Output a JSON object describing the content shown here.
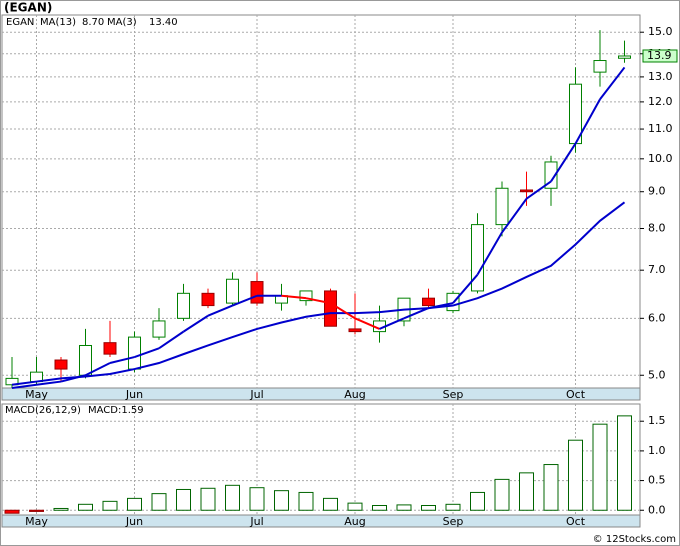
{
  "chart_data": [
    {
      "type": "candlestick",
      "title": "(EGAN)",
      "symbol": "EGAN",
      "categories": [
        null,
        "May",
        null,
        null,
        null,
        "Jun",
        null,
        null,
        null,
        null,
        "Jul",
        null,
        null,
        null,
        "Aug",
        null,
        null,
        null,
        "Sep",
        null,
        null,
        null,
        null,
        "Oct",
        null,
        null
      ],
      "open": [
        4.85,
        4.9,
        5.25,
        5.0,
        5.55,
        5.1,
        5.65,
        6.0,
        6.5,
        6.3,
        6.75,
        6.3,
        6.35,
        6.55,
        5.8,
        5.75,
        5.95,
        6.4,
        6.15,
        6.55,
        8.1,
        9.05,
        9.1,
        10.5,
        13.2,
        13.8
      ],
      "high": [
        5.3,
        5.3,
        5.3,
        5.8,
        5.95,
        5.75,
        6.2,
        6.7,
        6.6,
        6.95,
        6.95,
        6.7,
        6.55,
        6.6,
        6.5,
        6.25,
        6.4,
        6.6,
        6.55,
        8.4,
        9.3,
        9.6,
        10.1,
        13.4,
        15.1,
        14.6
      ],
      "low": [
        4.8,
        4.85,
        4.9,
        4.95,
        5.3,
        5.05,
        5.6,
        5.95,
        6.2,
        6.25,
        6.25,
        6.15,
        6.25,
        5.85,
        5.7,
        5.55,
        5.85,
        6.2,
        6.1,
        6.5,
        7.8,
        8.6,
        8.6,
        10.2,
        12.6,
        13.6
      ],
      "close": [
        4.95,
        5.05,
        5.1,
        5.5,
        5.35,
        5.65,
        5.95,
        6.5,
        6.25,
        6.8,
        6.3,
        6.45,
        6.55,
        5.85,
        5.75,
        5.95,
        6.4,
        6.25,
        6.5,
        8.1,
        9.1,
        9.0,
        9.9,
        12.7,
        13.7,
        13.9
      ],
      "up_color": "#008000",
      "down_color": "#ff0000",
      "series": [
        {
          "name": "MA(13)",
          "last_label": "8.70",
          "color": "#0000cc",
          "values": [
            4.85,
            4.9,
            4.95,
            4.98,
            5.02,
            5.1,
            5.2,
            5.35,
            5.5,
            5.65,
            5.8,
            5.92,
            6.03,
            6.1,
            6.1,
            6.12,
            6.17,
            6.2,
            6.25,
            6.4,
            6.6,
            6.85,
            7.1,
            7.6,
            8.2,
            8.7
          ]
        },
        {
          "name": "MA(3)",
          "last_label": "13.40",
          "color": "#0000cc",
          "down_color": "#ff0000",
          "values": [
            4.8,
            4.85,
            4.9,
            5.0,
            5.2,
            5.3,
            5.45,
            5.75,
            6.05,
            6.25,
            6.45,
            6.45,
            6.4,
            6.3,
            6.0,
            5.8,
            6.0,
            6.2,
            6.3,
            6.9,
            7.9,
            8.8,
            9.3,
            10.5,
            12.1,
            13.4
          ]
        }
      ],
      "log_scale": true,
      "grid": true,
      "ylim": [
        4.8,
        15.85
      ],
      "yticks": [
        {
          "value": 5,
          "label": "5.0"
        },
        {
          "value": 6,
          "label": "6.0"
        },
        {
          "value": 7,
          "label": "7.0"
        },
        {
          "value": 8,
          "label": "8.0"
        },
        {
          "value": 9,
          "label": "9.0"
        },
        {
          "value": 10,
          "label": "10.0"
        },
        {
          "value": 11,
          "label": "11.0"
        },
        {
          "value": 12,
          "label": "12.0"
        },
        {
          "value": 13,
          "label": "13.0"
        },
        {
          "value": 14,
          "label": "14.0"
        },
        {
          "value": 15,
          "label": "15.0"
        }
      ]
    },
    {
      "type": "bar",
      "title": "MACD(26,12,9)",
      "legend_text": "MACD:1.59",
      "categories": [
        null,
        "May",
        null,
        null,
        null,
        "Jun",
        null,
        null,
        null,
        null,
        "Jul",
        null,
        null,
        null,
        "Aug",
        null,
        null,
        null,
        "Sep",
        null,
        null,
        null,
        null,
        "Oct",
        null,
        null
      ],
      "values": [
        -0.05,
        -0.02,
        0.03,
        0.1,
        0.15,
        0.2,
        0.28,
        0.35,
        0.37,
        0.42,
        0.38,
        0.33,
        0.3,
        0.2,
        0.12,
        0.08,
        0.09,
        0.08,
        0.1,
        0.3,
        0.52,
        0.63,
        0.77,
        1.18,
        1.45,
        1.59
      ],
      "color": "#006400",
      "negative_color": "#ff0000",
      "grid": true,
      "ylim": [
        -0.08,
        1.79
      ],
      "yticks": [
        {
          "value": 0,
          "label": "0.0"
        },
        0.5,
        {
          "value": 1,
          "label": "1.0"
        },
        1.5
      ]
    }
  ],
  "footer": "© 12Stocks.com"
}
